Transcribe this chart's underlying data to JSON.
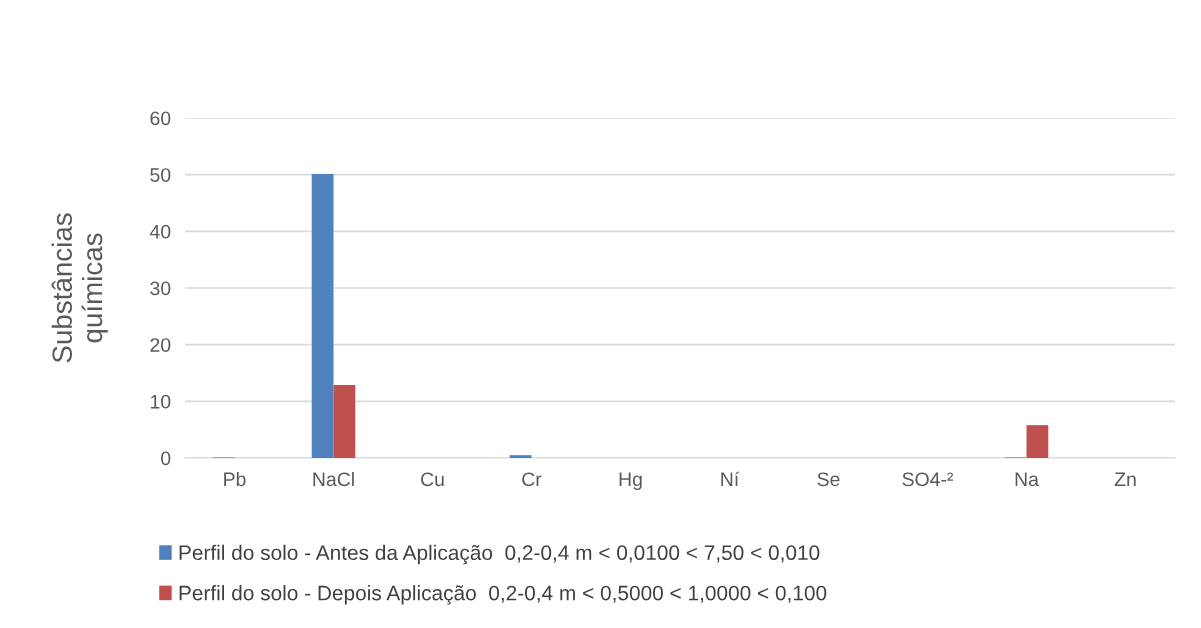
{
  "chart_data": {
    "type": "bar",
    "ylabel": "Substâncias\nquímicas",
    "categories": [
      "Pb",
      "NaCl",
      "Cu",
      "Cr",
      "Hg",
      "Ní",
      "Se",
      "SO4-²",
      "Na",
      "Zn"
    ],
    "series": [
      {
        "name": "Perfil do solo - Antes da Aplicação  0,2-0,4 m < 0,0100 < 7,50 < 0,010",
        "color": "#4f81bd",
        "values": [
          0.1,
          50.1,
          0,
          0.5,
          0,
          0,
          0,
          0,
          0.1,
          0
        ]
      },
      {
        "name": "Perfil do solo - Depois Aplicação  0,2-0,4 m < 0,5000 < 1,0000 < 0,100",
        "color": "#c0504d",
        "values": [
          0,
          12.9,
          0,
          0,
          0,
          0,
          0,
          0,
          5.8,
          0
        ]
      }
    ],
    "ylim": [
      0,
      60
    ],
    "yticks": [
      0,
      10,
      20,
      30,
      40,
      50,
      60
    ],
    "grid": "y",
    "legend": "bottom"
  }
}
